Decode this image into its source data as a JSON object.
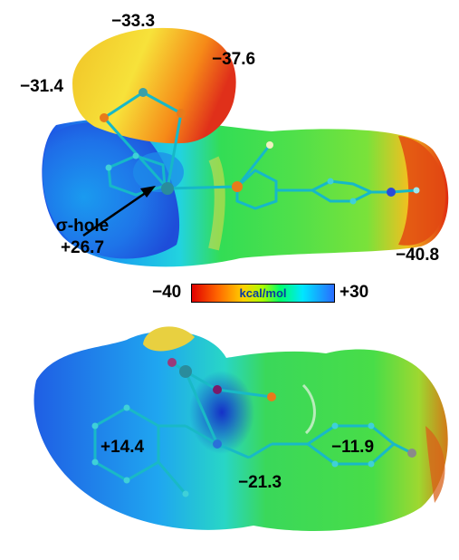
{
  "top_panel": {
    "labels": {
      "val_a": "−33.3",
      "val_b": "−37.6",
      "val_c": "−31.4",
      "val_d": "−40.8",
      "sigma_hole_line1": "σ-hole",
      "sigma_hole_line2": "+26.7"
    }
  },
  "color_scale": {
    "min_label": "−40",
    "max_label": "+30",
    "unit": "kcal/mol",
    "colors": [
      "#e00000",
      "#ff6600",
      "#ffd000",
      "#a8ff00",
      "#00ff6a",
      "#00e6ff",
      "#2a6cff"
    ]
  },
  "bottom_panel": {
    "labels": {
      "val_e": "+14.4",
      "val_f": "−11.9",
      "val_g": "−21.3"
    }
  }
}
